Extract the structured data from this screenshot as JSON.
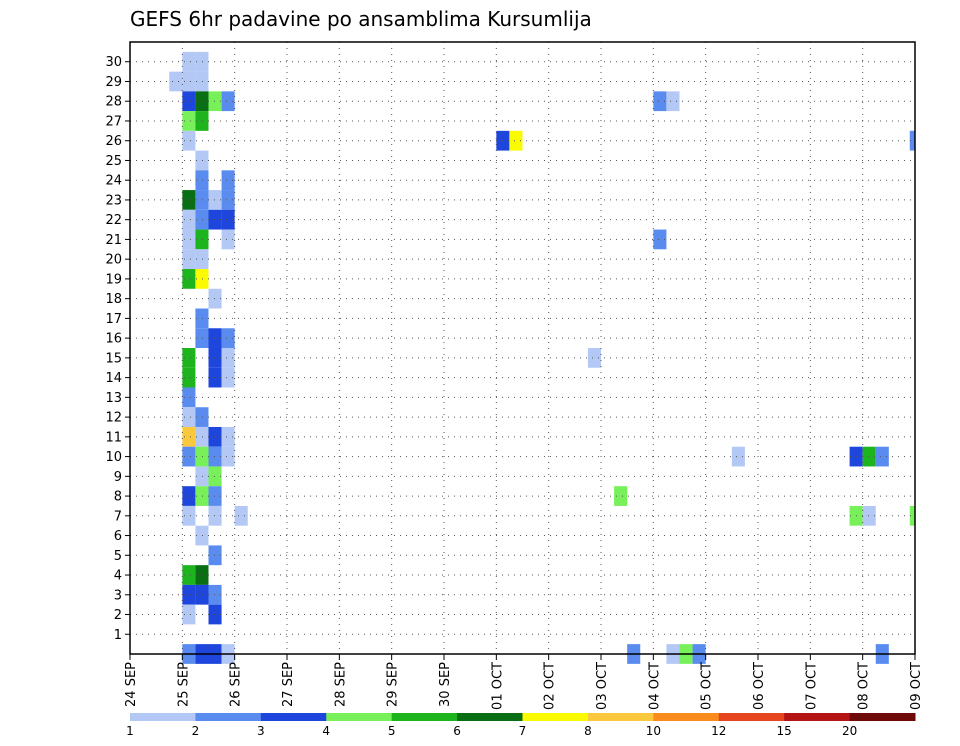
{
  "chart_data": {
    "type": "heatmap",
    "title": "GEFS 6hr padavine po ansamblima Kursumlija",
    "xlabel": "",
    "ylabel": "",
    "x_ticks": [
      "24 SEP",
      "25 SEP",
      "26 SEP",
      "27 SEP",
      "28 SEP",
      "29 SEP",
      "30 SEP",
      "01 OCT",
      "02 OCT",
      "03 OCT",
      "04 OCT",
      "05 OCT",
      "06 OCT",
      "07 OCT",
      "08 OCT",
      "09 OCT"
    ],
    "y_ticks": [
      1,
      2,
      3,
      4,
      5,
      6,
      7,
      8,
      9,
      10,
      11,
      12,
      13,
      14,
      15,
      16,
      17,
      18,
      19,
      20,
      21,
      22,
      23,
      24,
      25,
      26,
      27,
      28,
      29,
      30
    ],
    "xlim": [
      0,
      15
    ],
    "ylim": [
      0,
      30
    ],
    "grid": true,
    "cell_width_days": 0.25,
    "colorbar": {
      "placement": "bottom",
      "labels": [
        "1",
        "2",
        "3",
        "4",
        "5",
        "6",
        "7",
        "8",
        "10",
        "12",
        "15",
        "20"
      ],
      "colors": [
        "#b4c8f5",
        "#5a8cf0",
        "#1e46dc",
        "#78f05a",
        "#1eb41e",
        "#0a6e14",
        "#fafa00",
        "#fac83c",
        "#fa8c1e",
        "#e6461e",
        "#b41414",
        "#6e0a0a"
      ]
    },
    "cells": [
      {
        "t": 0.75,
        "m": 29,
        "c": 0
      },
      {
        "t": 1.0,
        "m": 29,
        "c": 0
      },
      {
        "t": 1.25,
        "m": 29,
        "c": 0
      },
      {
        "t": 1.0,
        "m": 30,
        "c": 0
      },
      {
        "t": 1.25,
        "m": 30,
        "c": 0
      },
      {
        "t": 1.0,
        "m": 28,
        "c": 2
      },
      {
        "t": 1.25,
        "m": 28,
        "c": 5
      },
      {
        "t": 1.5,
        "m": 28,
        "c": 3
      },
      {
        "t": 1.75,
        "m": 28,
        "c": 1
      },
      {
        "t": 10.0,
        "m": 28,
        "c": 1
      },
      {
        "t": 10.25,
        "m": 28,
        "c": 0
      },
      {
        "t": 1.0,
        "m": 27,
        "c": 3
      },
      {
        "t": 1.25,
        "m": 27,
        "c": 4
      },
      {
        "t": 1.0,
        "m": 26,
        "c": 0
      },
      {
        "t": 7.0,
        "m": 26,
        "c": 2
      },
      {
        "t": 7.25,
        "m": 26,
        "c": 6
      },
      {
        "t": 14.9,
        "m": 26,
        "c": 1
      },
      {
        "t": 1.25,
        "m": 25,
        "c": 0
      },
      {
        "t": 1.25,
        "m": 24,
        "c": 1
      },
      {
        "t": 1.75,
        "m": 24,
        "c": 1
      },
      {
        "t": 1.0,
        "m": 23,
        "c": 5
      },
      {
        "t": 1.25,
        "m": 23,
        "c": 1
      },
      {
        "t": 1.5,
        "m": 23,
        "c": 0
      },
      {
        "t": 1.75,
        "m": 23,
        "c": 1
      },
      {
        "t": 1.0,
        "m": 22,
        "c": 0
      },
      {
        "t": 1.25,
        "m": 22,
        "c": 1
      },
      {
        "t": 1.5,
        "m": 22,
        "c": 2
      },
      {
        "t": 1.75,
        "m": 22,
        "c": 2
      },
      {
        "t": 1.0,
        "m": 21,
        "c": 0
      },
      {
        "t": 1.25,
        "m": 21,
        "c": 4
      },
      {
        "t": 1.75,
        "m": 21,
        "c": 0
      },
      {
        "t": 10.0,
        "m": 21,
        "c": 1
      },
      {
        "t": 1.0,
        "m": 20,
        "c": 0
      },
      {
        "t": 1.25,
        "m": 20,
        "c": 0
      },
      {
        "t": 1.0,
        "m": 19,
        "c": 4
      },
      {
        "t": 1.25,
        "m": 19,
        "c": 6
      },
      {
        "t": 1.5,
        "m": 18,
        "c": 0
      },
      {
        "t": 1.25,
        "m": 17,
        "c": 1
      },
      {
        "t": 1.25,
        "m": 16,
        "c": 1
      },
      {
        "t": 1.5,
        "m": 16,
        "c": 2
      },
      {
        "t": 1.75,
        "m": 16,
        "c": 1
      },
      {
        "t": 1.0,
        "m": 15,
        "c": 4
      },
      {
        "t": 1.5,
        "m": 15,
        "c": 2
      },
      {
        "t": 1.75,
        "m": 15,
        "c": 0
      },
      {
        "t": 8.75,
        "m": 15,
        "c": 0
      },
      {
        "t": 1.0,
        "m": 14,
        "c": 4
      },
      {
        "t": 1.5,
        "m": 14,
        "c": 2
      },
      {
        "t": 1.75,
        "m": 14,
        "c": 0
      },
      {
        "t": 1.0,
        "m": 13,
        "c": 1
      },
      {
        "t": 1.0,
        "m": 12,
        "c": 0
      },
      {
        "t": 1.25,
        "m": 12,
        "c": 1
      },
      {
        "t": 1.0,
        "m": 11,
        "c": 7
      },
      {
        "t": 1.25,
        "m": 11,
        "c": 0
      },
      {
        "t": 1.5,
        "m": 11,
        "c": 2
      },
      {
        "t": 1.75,
        "m": 11,
        "c": 0
      },
      {
        "t": 1.0,
        "m": 10,
        "c": 1
      },
      {
        "t": 1.25,
        "m": 10,
        "c": 3
      },
      {
        "t": 1.5,
        "m": 10,
        "c": 1
      },
      {
        "t": 1.75,
        "m": 10,
        "c": 0
      },
      {
        "t": 11.5,
        "m": 10,
        "c": 0
      },
      {
        "t": 13.75,
        "m": 10,
        "c": 2
      },
      {
        "t": 14.0,
        "m": 10,
        "c": 4
      },
      {
        "t": 14.25,
        "m": 10,
        "c": 1
      },
      {
        "t": 1.25,
        "m": 9,
        "c": 0
      },
      {
        "t": 1.5,
        "m": 9,
        "c": 3
      },
      {
        "t": 1.0,
        "m": 8,
        "c": 2
      },
      {
        "t": 1.25,
        "m": 8,
        "c": 3
      },
      {
        "t": 1.5,
        "m": 8,
        "c": 1
      },
      {
        "t": 9.25,
        "m": 8,
        "c": 3
      },
      {
        "t": 1.0,
        "m": 7,
        "c": 0
      },
      {
        "t": 1.5,
        "m": 7,
        "c": 0
      },
      {
        "t": 2.0,
        "m": 7,
        "c": 0
      },
      {
        "t": 13.75,
        "m": 7,
        "c": 3
      },
      {
        "t": 14.0,
        "m": 7,
        "c": 0
      },
      {
        "t": 14.9,
        "m": 7,
        "c": 3
      },
      {
        "t": 1.25,
        "m": 6,
        "c": 0
      },
      {
        "t": 1.5,
        "m": 5,
        "c": 1
      },
      {
        "t": 1.0,
        "m": 4,
        "c": 4
      },
      {
        "t": 1.25,
        "m": 4,
        "c": 5
      },
      {
        "t": 1.0,
        "m": 3,
        "c": 2
      },
      {
        "t": 1.25,
        "m": 3,
        "c": 2
      },
      {
        "t": 1.5,
        "m": 3,
        "c": 1
      },
      {
        "t": 1.0,
        "m": 2,
        "c": 0
      },
      {
        "t": 1.5,
        "m": 2,
        "c": 2
      },
      {
        "t": 1.0,
        "m": 0,
        "c": 1
      },
      {
        "t": 1.25,
        "m": 0,
        "c": 2
      },
      {
        "t": 1.5,
        "m": 0,
        "c": 2
      },
      {
        "t": 1.75,
        "m": 0,
        "c": 0
      },
      {
        "t": 9.5,
        "m": 0,
        "c": 1
      },
      {
        "t": 10.25,
        "m": 0,
        "c": 0
      },
      {
        "t": 10.5,
        "m": 0,
        "c": 3
      },
      {
        "t": 10.75,
        "m": 0,
        "c": 1
      },
      {
        "t": 14.25,
        "m": 0,
        "c": 1
      }
    ]
  }
}
